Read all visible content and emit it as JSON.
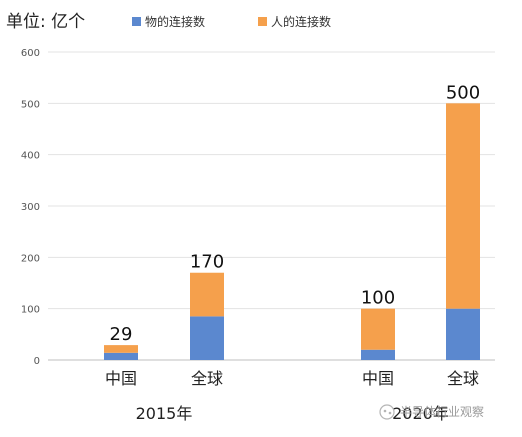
{
  "chart_data": {
    "type": "bar",
    "stacked": true,
    "unit_label": "单位: 亿个",
    "categories": [
      "中国",
      "全球",
      "中国",
      "全球"
    ],
    "groups": [
      {
        "label": "2015年",
        "category_indices": [
          0,
          1
        ]
      },
      {
        "label": "2020年",
        "category_indices": [
          2,
          3
        ]
      }
    ],
    "series": [
      {
        "name": "物的连接数",
        "color": "#5b88cf",
        "values": [
          14,
          85,
          20,
          100
        ]
      },
      {
        "name": "人的连接数",
        "color": "#f5a04c",
        "values": [
          15,
          85,
          80,
          400
        ]
      }
    ],
    "totals": [
      "29",
      "170",
      "100",
      "500"
    ],
    "ylim": [
      0,
      600
    ],
    "yticks": [
      0,
      100,
      200,
      300,
      400,
      500,
      600
    ],
    "grid": true,
    "legend_position": "top",
    "watermark": "半导体行业观察"
  }
}
